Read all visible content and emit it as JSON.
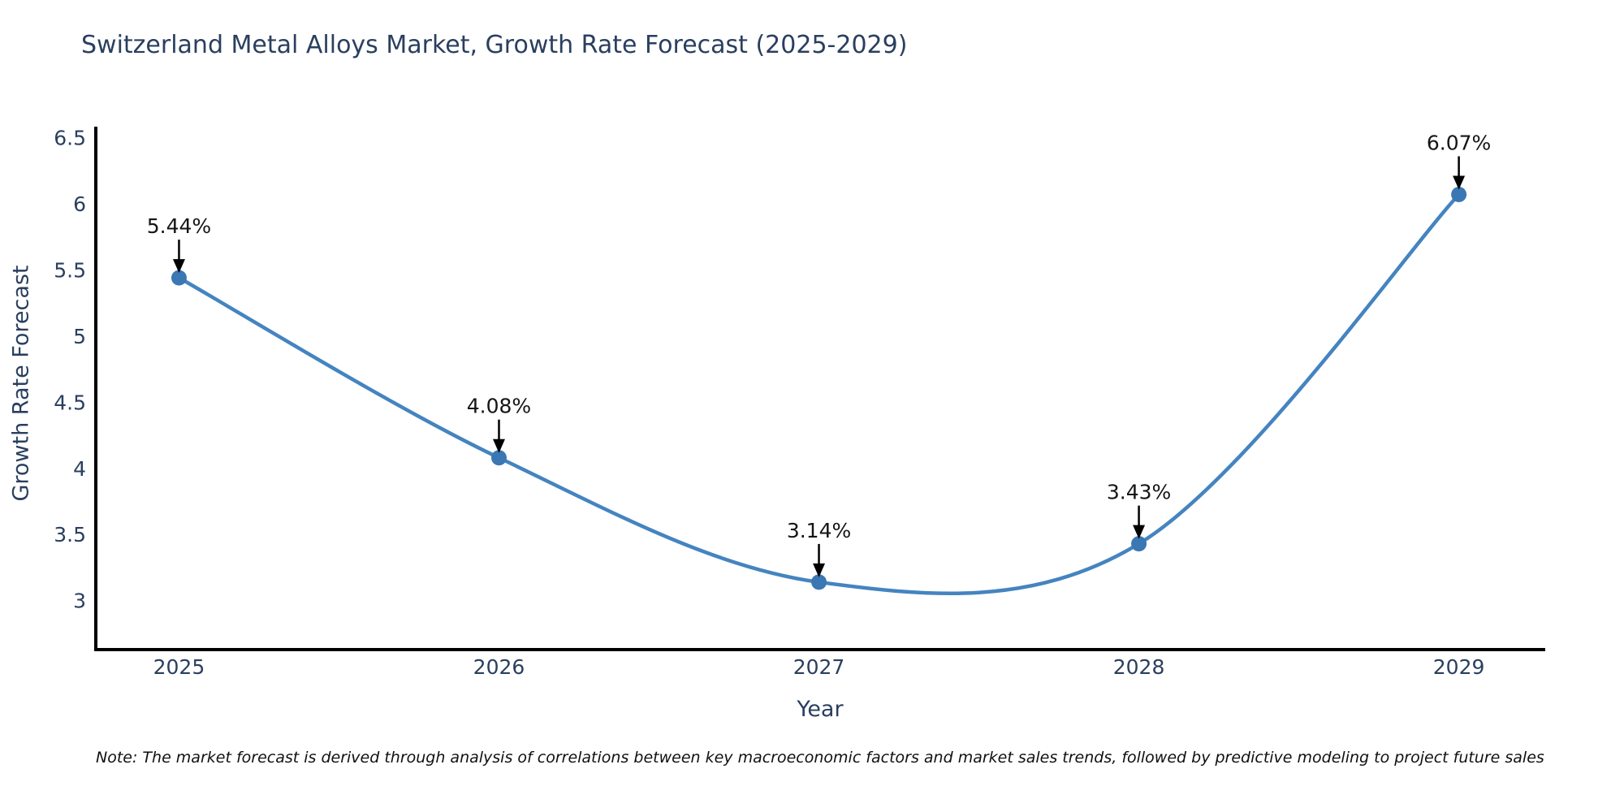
{
  "title": "Switzerland Metal Alloys Market, Growth Rate Forecast (2025-2029)",
  "note": "Note: The market forecast is derived through analysis of correlations between key macroeconomic factors and market sales trends, followed by predictive modeling to project future sales",
  "chart_data": {
    "type": "line",
    "title": "Switzerland Metal Alloys Market, Growth Rate Forecast (2025-2029)",
    "xlabel": "Year",
    "ylabel": "Growth Rate Forecast",
    "x": [
      2025,
      2026,
      2027,
      2028,
      2029
    ],
    "values": [
      5.44,
      4.08,
      3.14,
      3.43,
      6.07
    ],
    "point_labels": [
      "5.44%",
      "4.08%",
      "3.14%",
      "3.43%",
      "6.07%"
    ],
    "x_ticks": [
      "2025",
      "2026",
      "2027",
      "2028",
      "2029"
    ],
    "y_ticks": [
      3,
      3.5,
      4,
      4.5,
      5,
      5.5,
      6,
      6.5
    ],
    "xlim": [
      2024.74,
      2029.27
    ],
    "ylim": [
      2.63,
      6.57
    ],
    "line_shape": "spline",
    "grid": false,
    "legend": "none",
    "colors": {
      "line": "#4484c0",
      "marker": "#3b77b3",
      "axis_text": "#2a3f5f",
      "spine": "#000000",
      "annotation_text": "#151515",
      "annotation_arrow": "#000000"
    }
  }
}
